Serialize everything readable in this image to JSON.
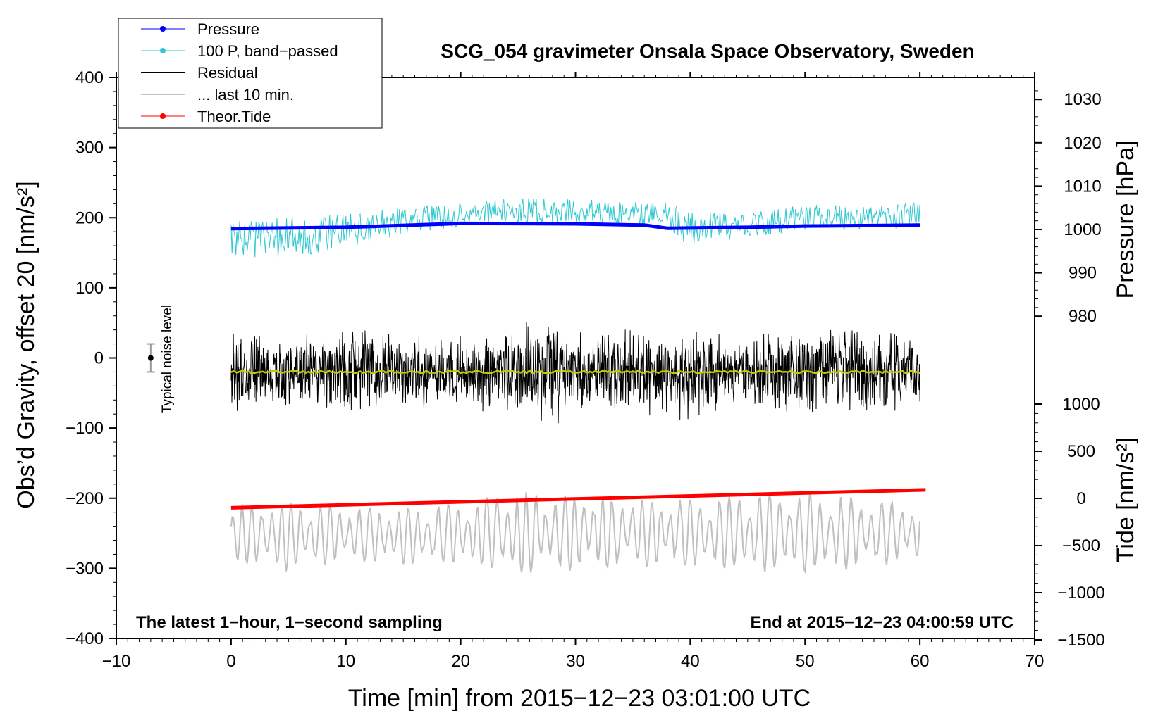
{
  "chart_data": {
    "type": "line",
    "title": "SCG_054 gravimeter Onsala Space Observatory, Sweden",
    "xlabel": "Time [min] from 2015−12−23 03:01:00 UTC",
    "ylabel_left": "Obs’d Gravity, offset 20 [nm/s²]",
    "ylabel_right_top": "Pressure [hPa]",
    "ylabel_right_bottom": "Tide [nm/s²]",
    "xlim": [
      -10,
      70
    ],
    "ylim_left": [
      -400,
      400
    ],
    "pressure_ticks": [
      980,
      990,
      1000,
      1010,
      1020,
      1030
    ],
    "tide_ticks": [
      -1500,
      -1000,
      -500,
      0,
      500,
      1000
    ],
    "annotation_left": "The latest 1−hour, 1−second sampling",
    "annotation_right": "End at 2015−12−23 04:00:59 UTC",
    "noise_label": "Typical noise level",
    "noise_bar": {
      "x": -7,
      "center": 0,
      "halfwidth": 20
    },
    "legend": [
      {
        "label": "Pressure",
        "color": "#0000ff",
        "marker": true
      },
      {
        "label": "100 P, band−passed",
        "color": "#2ec8d0",
        "marker": true
      },
      {
        "label": "Residual",
        "color": "#000000",
        "marker": false
      },
      {
        "label": "... last 10 min.",
        "color": "#c0c0c0",
        "marker": false
      },
      {
        "label": "Theor.Tide",
        "color": "#ff0000",
        "marker": true
      }
    ],
    "series": [
      {
        "name": "Pressure",
        "color": "#0000ff",
        "axis": "pressure",
        "x": [
          0,
          10,
          20,
          30,
          36,
          38,
          45,
          50,
          60
        ],
        "y": [
          1000.2,
          1000.5,
          1001.4,
          1001.3,
          1001.0,
          1000.3,
          1000.5,
          1000.8,
          1001.0
        ]
      },
      {
        "name": "100 P, band−passed",
        "color": "#2ec8d0",
        "axis": "left",
        "envelope_x": [
          0,
          5,
          10,
          15,
          20,
          25,
          30,
          35,
          38,
          40,
          45,
          50,
          55,
          60
        ],
        "envelope_mean": [
          170,
          172,
          180,
          195,
          205,
          210,
          210,
          205,
          200,
          185,
          192,
          200,
          200,
          205
        ],
        "envelope_amp": [
          25,
          30,
          25,
          20,
          18,
          18,
          18,
          18,
          22,
          25,
          20,
          18,
          18,
          18
        ]
      },
      {
        "name": "Residual",
        "color": "#000000",
        "axis": "left",
        "envelope_x": [
          0,
          5,
          10,
          15,
          20,
          25,
          27,
          30,
          35,
          40,
          45,
          50,
          55,
          60
        ],
        "envelope_mean": [
          -20,
          -20,
          -20,
          -20,
          -20,
          -20,
          -20,
          -20,
          -20,
          -20,
          -20,
          -20,
          -20,
          -20
        ],
        "envelope_amp": [
          60,
          55,
          65,
          60,
          55,
          70,
          90,
          60,
          65,
          70,
          60,
          70,
          65,
          55
        ]
      },
      {
        "name": "Residual smoothed",
        "color": "#c8c800",
        "axis": "left",
        "x": [
          0,
          60
        ],
        "y": [
          -20,
          -20
        ]
      },
      {
        "name": "... last 10 min.",
        "color": "#c0c0c0",
        "axis": "left",
        "envelope_x": [
          0,
          5,
          10,
          15,
          20,
          25,
          30,
          35,
          40,
          45,
          50,
          55,
          60
        ],
        "envelope_mean": [
          -250,
          -255,
          -250,
          -255,
          -250,
          -250,
          -250,
          -250,
          -250,
          -250,
          -250,
          -250,
          -250
        ],
        "envelope_amp": [
          40,
          50,
          40,
          40,
          45,
          60,
          55,
          50,
          50,
          55,
          60,
          50,
          40
        ]
      },
      {
        "name": "Theor.Tide",
        "color": "#ff0000",
        "axis": "tide",
        "x": [
          0,
          60.5
        ],
        "y": [
          -100,
          90
        ]
      }
    ]
  }
}
